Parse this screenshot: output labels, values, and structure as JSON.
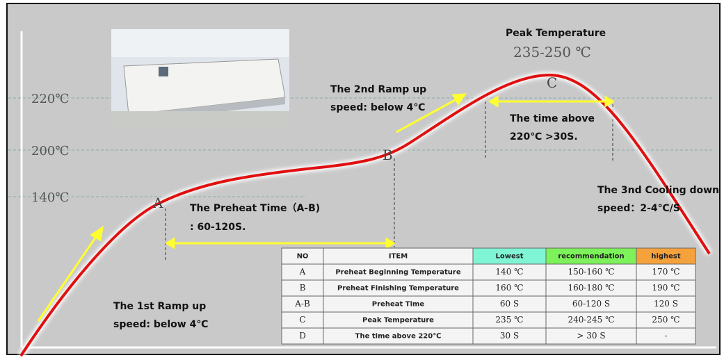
{
  "peak": {
    "title": "Peak Temperature",
    "range": "235-250 ℃"
  },
  "temperature_labels": [
    "220℃",
    "200℃",
    "140℃"
  ],
  "points": [
    "A",
    "B",
    "C"
  ],
  "notes": {
    "second_ramp": [
      "The 2nd Ramp up",
      "speed: below 4℃"
    ],
    "time_above": [
      "The time above",
      "220℃ >30S."
    ],
    "cooling": [
      "The 3nd Cooling down",
      "speed：2-4℃/S"
    ],
    "preheat": [
      "The Preheat Time（A-B)",
      ": 60-120S."
    ],
    "first_ramp": [
      "The 1st  Ramp up",
      "speed: below 4℃"
    ]
  },
  "table": {
    "header": [
      "NO",
      "ITEM",
      "Lowest",
      "recommendation",
      "highest"
    ],
    "rows": [
      [
        "A",
        "Preheat Beginning Temperature",
        "140 ℃",
        "150-160 ℃",
        "170 ℃"
      ],
      [
        "B",
        "Preheat Finishing Temperature",
        "160 ℃",
        "160-180 ℃",
        "190 ℃"
      ],
      [
        "A-B",
        "Preheat Time",
        "60 S",
        "60-120 S",
        "120 S"
      ],
      [
        "C",
        "Peak Temperature",
        "235 ℃",
        "240-245 ℃",
        "250 ℃"
      ],
      [
        "D",
        "The time above 220℃",
        "30 S",
        "> 30 S",
        "-"
      ]
    ]
  }
}
